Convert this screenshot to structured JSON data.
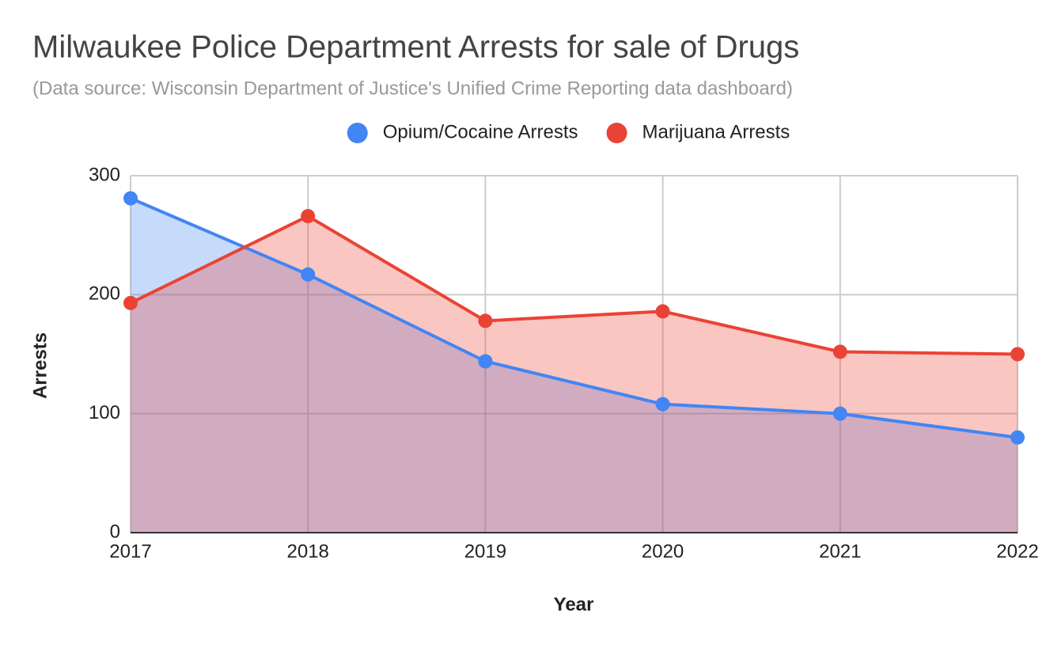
{
  "chart_data": {
    "type": "area",
    "title": "Milwaukee Police Department Arrests for sale of Drugs",
    "subtitle": "(Data source: Wisconsin Department of Justice's Unified Crime Reporting data dashboard)",
    "x_label": "Year",
    "y_label": "Arrests",
    "x": [
      2017,
      2018,
      2019,
      2020,
      2021,
      2022
    ],
    "series": [
      {
        "name": "Opium/Cocaine Arrests",
        "color": "#4285f4",
        "values": [
          281,
          217,
          144,
          108,
          100,
          80
        ]
      },
      {
        "name": "Marijuana Arrests",
        "color": "#ea4335",
        "values": [
          193,
          266,
          178,
          186,
          152,
          150
        ]
      }
    ],
    "xlim": [
      2017,
      2022
    ],
    "xticks": [
      2017,
      2018,
      2019,
      2020,
      2021,
      2022
    ],
    "ylim": [
      0,
      300
    ],
    "yticks": [
      0,
      100,
      200,
      300
    ],
    "grid": true,
    "legend": "top"
  }
}
